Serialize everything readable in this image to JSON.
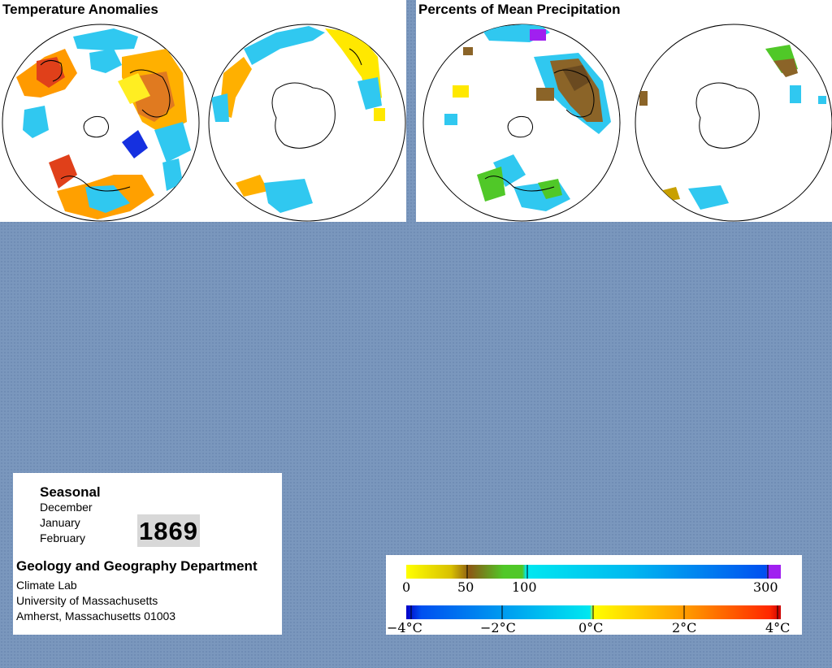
{
  "panels": {
    "temperature": {
      "title": "Temperature Anomalies"
    },
    "precipitation": {
      "title": "Percents of Mean Precipitation"
    }
  },
  "info": {
    "season_label": "Seasonal",
    "months": [
      "December",
      "January",
      "February"
    ],
    "year": "1869",
    "department": "Geology and Geography Department",
    "org_lines": [
      "Climate Lab",
      "University of Massachusetts",
      "Amherst, Massachusetts 01003"
    ]
  },
  "legend": {
    "precipitation": {
      "ticks": [
        "0",
        "50",
        "100",
        "300"
      ],
      "colors": [
        "#ffff00",
        "#c8a000",
        "#8b5a14",
        "#50c828",
        "#00e8e8",
        "#00a0f0",
        "#0050f0",
        "#a020f0"
      ]
    },
    "temperature": {
      "ticks": [
        "−4°C",
        "−2°C",
        "0°C",
        "2°C",
        "4°C"
      ],
      "colors": [
        "#0000c8",
        "#0080f0",
        "#00e0f0",
        "#ffff00",
        "#ff9900",
        "#ff2000"
      ]
    }
  },
  "colors": {
    "background": "#7a97bd",
    "warm_anomaly": "#ff8c00",
    "cold_anomaly": "#00d0f0",
    "dry": "#c8a000",
    "wet": "#30c8f0"
  }
}
